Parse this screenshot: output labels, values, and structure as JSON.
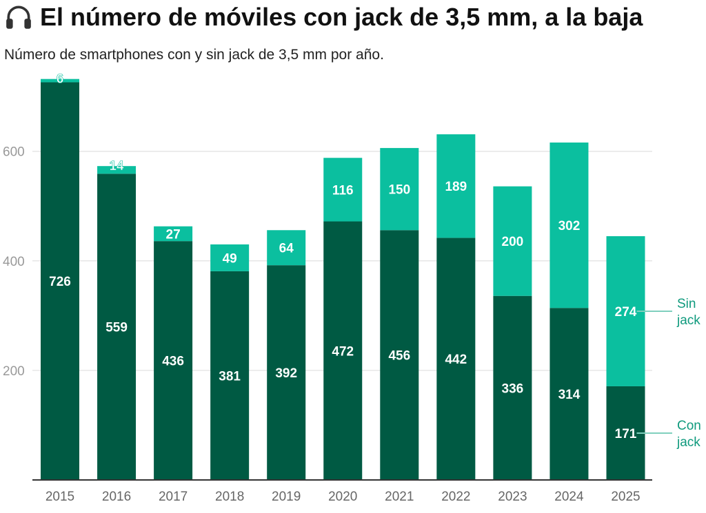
{
  "header": {
    "icon": "headphones-icon",
    "title": "El número de móviles con jack de 3,5 mm, a la baja",
    "subtitle": "Número de smartphones con y sin jack de 3,5 mm por año."
  },
  "colors": {
    "con_jack": "#005a43",
    "sin_jack": "#0bbf9f",
    "grid": "#e6e6e6",
    "axis_text": "#999999",
    "legend_text": "#0f9a7d"
  },
  "chart_data": {
    "type": "bar",
    "stacked": true,
    "title": "El número de móviles con jack de 3,5 mm, a la baja",
    "subtitle": "Número de smartphones con y sin jack de 3,5 mm por año.",
    "xlabel": "",
    "ylabel": "",
    "categories": [
      "2015",
      "2016",
      "2017",
      "2018",
      "2019",
      "2020",
      "2021",
      "2022",
      "2023",
      "2024",
      "2025"
    ],
    "series": [
      {
        "name": "Con jack",
        "label_lines": [
          "Con",
          "jack"
        ],
        "values": [
          726,
          559,
          436,
          381,
          392,
          472,
          456,
          442,
          336,
          314,
          171
        ]
      },
      {
        "name": "Sin jack",
        "label_lines": [
          "Sin",
          "jack"
        ],
        "values": [
          6,
          14,
          27,
          49,
          64,
          116,
          150,
          189,
          200,
          302,
          274
        ]
      }
    ],
    "yticks": [
      200,
      400,
      600
    ],
    "ylim": [
      0,
      735
    ],
    "grid": true,
    "legend": "direct labels at right"
  }
}
